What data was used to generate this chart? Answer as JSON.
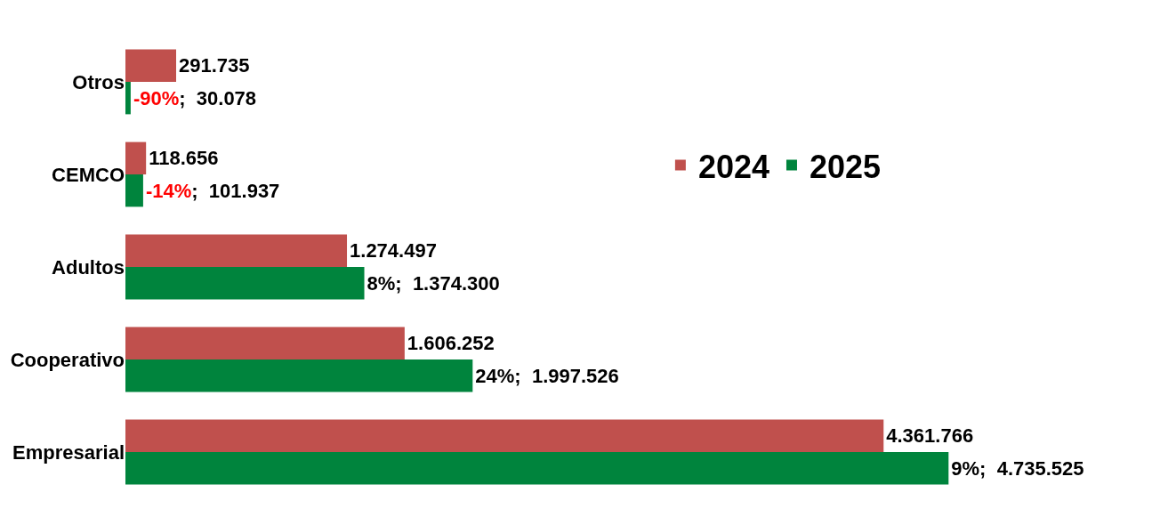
{
  "chart_data": {
    "type": "bar",
    "orientation": "horizontal",
    "categories": [
      "Otros",
      "CEMCO",
      "Adultos",
      "Cooperativo",
      "Empresarial"
    ],
    "series": [
      {
        "name": "2024",
        "color": "#c0504d",
        "values": [
          291735,
          118656,
          1274497,
          1606252,
          4361766
        ],
        "value_labels": [
          "291.735",
          "118.656",
          "1.274.497",
          "1.606.252",
          "4.361.766"
        ]
      },
      {
        "name": "2025",
        "color": "#00843d",
        "values": [
          30078,
          101937,
          1374300,
          1997526,
          4735525
        ],
        "value_labels": [
          "-90%;  30.078",
          "-14%;  101.937",
          "8%;  1.374.300",
          "24%;  1.997.526",
          "9%;  4.735.525"
        ]
      }
    ],
    "tick_labels": "y",
    "legend": "right"
  }
}
